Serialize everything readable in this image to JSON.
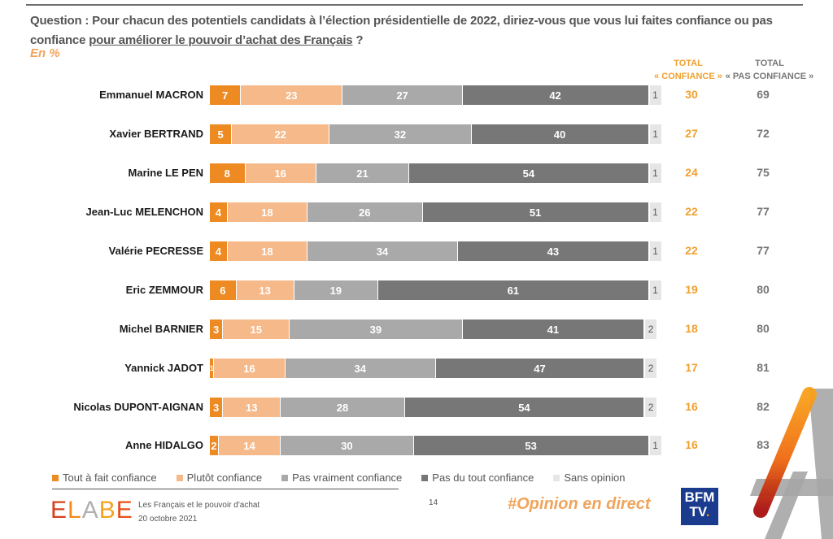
{
  "header": {
    "question_prefix": "Question : Pour chacun des potentiels candidats à l’élection présidentielle de 2022, diriez-vous que vous lui faites confiance ou pas confiance ",
    "question_underlined": "pour améliorer le pouvoir d’achat des Français",
    "question_suffix": " ?",
    "unit": "En %"
  },
  "columns": {
    "total_confiance": "TOTAL\n« CONFIANCE »",
    "total_confiance_l1": "TOTAL",
    "total_confiance_l2": "« CONFIANCE »",
    "total_pas_l1": "TOTAL",
    "total_pas_l2": "« PAS CONFIANCE »"
  },
  "chart_data": {
    "type": "bar",
    "orientation": "horizontal",
    "stacked": true,
    "title": "Confiance pour améliorer le pouvoir d’achat des Français",
    "unit": "%",
    "categories": [
      "Emmanuel MACRON",
      "Xavier BERTRAND",
      "Marine LE PEN",
      "Jean-Luc MELENCHON",
      "Valérie PECRESSE",
      "Eric ZEMMOUR",
      "Michel BARNIER",
      "Yannick JADOT",
      "Nicolas DUPONT-AIGNAN",
      "Anne HIDALGO"
    ],
    "series": [
      {
        "name": "Tout à fait confiance",
        "color": "#ee8a22",
        "values": [
          7,
          5,
          8,
          4,
          4,
          6,
          3,
          1,
          3,
          2
        ]
      },
      {
        "name": "Plutôt confiance",
        "color": "#f6b98a",
        "values": [
          23,
          22,
          16,
          18,
          18,
          13,
          15,
          16,
          13,
          14
        ]
      },
      {
        "name": "Pas vraiment confiance",
        "color": "#a9a9a9",
        "values": [
          27,
          32,
          21,
          26,
          34,
          19,
          39,
          34,
          28,
          30
        ]
      },
      {
        "name": "Pas du tout confiance",
        "color": "#777777",
        "values": [
          42,
          40,
          54,
          51,
          43,
          61,
          41,
          47,
          54,
          53
        ]
      },
      {
        "name": "Sans opinion",
        "color": "#e6e6e6",
        "values": [
          1,
          1,
          1,
          1,
          1,
          1,
          2,
          2,
          2,
          1
        ]
      }
    ],
    "total_confiance": [
      30,
      27,
      24,
      22,
      22,
      19,
      18,
      17,
      16,
      16
    ],
    "total_pas_confiance": [
      69,
      72,
      75,
      77,
      77,
      80,
      80,
      81,
      82,
      83
    ],
    "legend_position": "bottom",
    "xlim": [
      0,
      100
    ]
  },
  "footer": {
    "brand": "ELABE",
    "study_title": "Les Français et le pouvoir d'achat",
    "date": "20 octobre 2021",
    "page": "14",
    "hashtag": "#Opinion en direct",
    "channel_logo_l1": "BFM",
    "channel_logo_l2": "TV",
    "channel_logo_dot": "."
  },
  "colors": {
    "accent_orange": "#ee8a22",
    "light_orange": "#f6b98a",
    "grey": "#a9a9a9",
    "dark_grey": "#777777",
    "bfm_blue": "#1a3b8e"
  }
}
